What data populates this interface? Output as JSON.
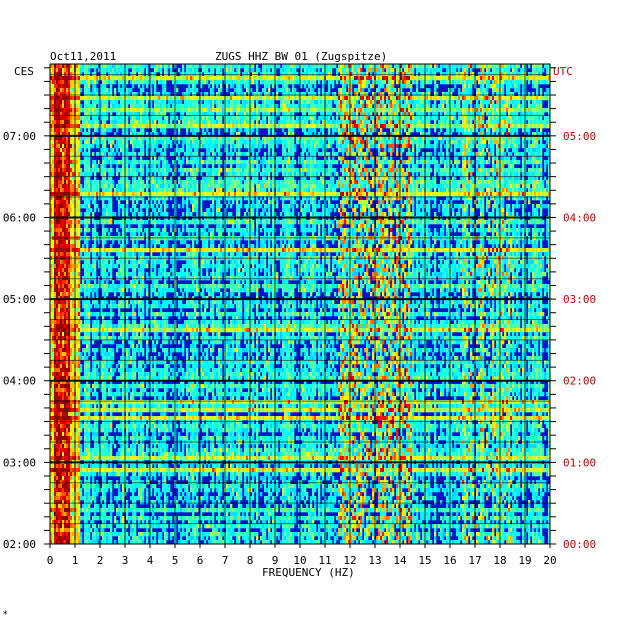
{
  "header": {
    "date": "Oct11,2011",
    "station": "ZUGS HHZ BW 01 (Zugspitze)"
  },
  "footer": {
    "mark": "*"
  },
  "chart_data": {
    "type": "heatmap",
    "title": "ZUGS HHZ BW 01 (Zugspitze)",
    "date": "Oct11,2011",
    "xlabel": "FREQUENCY (HZ)",
    "xlim": [
      0,
      20
    ],
    "x_ticks": [
      "0",
      "1",
      "2",
      "3",
      "4",
      "5",
      "6",
      "7",
      "8",
      "9",
      "10",
      "11",
      "12",
      "13",
      "14",
      "15",
      "16",
      "17",
      "18",
      "19",
      "20"
    ],
    "left_axis": {
      "label": "CES",
      "color": "#000000",
      "ticks": [
        "07:00",
        "06:00",
        "05:00",
        "04:00",
        "03:00",
        "02:00"
      ],
      "tick_hours": [
        7,
        6,
        5,
        4,
        3,
        2
      ]
    },
    "right_axis": {
      "label": "UTC",
      "color": "#cc0000",
      "ticks": [
        "05:00",
        "04:00",
        "03:00",
        "02:00",
        "01:00",
        "00:00"
      ],
      "tick_hours": [
        5,
        4,
        3,
        2,
        1,
        0
      ]
    },
    "time_range_ces": [
      2.0,
      7.88
    ],
    "colormap": [
      "#000080",
      "#0000ff",
      "#00ffff",
      "#ffff00",
      "#ff0000",
      "#800000"
    ],
    "grid": true,
    "notes_energy": {
      "low_frequency_band_hz": [
        0.2,
        0.8
      ],
      "mid_band_hz": [
        11.5,
        14.5
      ],
      "high_band_hz": [
        16.5,
        18.5
      ]
    }
  }
}
